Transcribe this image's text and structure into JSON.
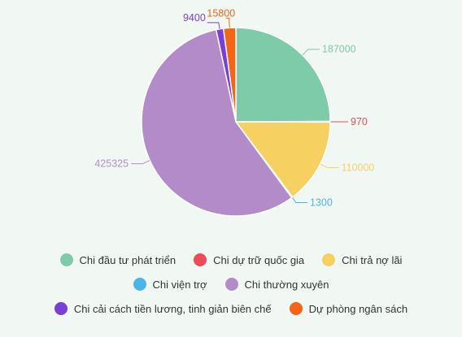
{
  "chart_data": {
    "type": "pie",
    "title": "",
    "categories": [
      "Chi đầu tư phát triển",
      "Chi dự trữ quốc gia",
      "Chi trả nợ lãi",
      "Chi viện trợ",
      "Chi thường xuyên",
      "Chi cải cách tiền lương, tinh giản biên chế",
      "Dự phòng ngân sách"
    ],
    "values": [
      187000,
      970,
      110000,
      1300,
      425325,
      9400,
      15800
    ],
    "colors": [
      "#7ecba9",
      "#ee4a58",
      "#f7d062",
      "#4cb5e8",
      "#b48bc9",
      "#7b3fd8",
      "#f46516"
    ],
    "legend_position": "bottom"
  }
}
